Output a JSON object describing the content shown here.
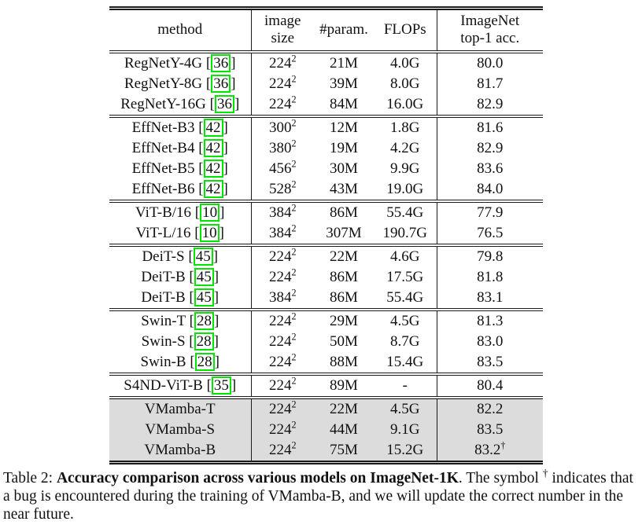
{
  "colors": {
    "citation_box": "#00e400",
    "highlight_row_bg": "#dcdcdc",
    "rule_color": "#1a1a1a",
    "text_color": "#111111"
  },
  "table": {
    "columns": [
      {
        "id": "method",
        "label": "method"
      },
      {
        "id": "image-size",
        "label": "image\nsize"
      },
      {
        "id": "params",
        "label": "#param."
      },
      {
        "id": "flops",
        "label": "FLOPs"
      },
      {
        "id": "top1-acc",
        "label": "ImageNet\ntop-1 acc."
      }
    ],
    "cite_open": "[",
    "cite_close": "]",
    "sections": [
      {
        "group": "RegNetY",
        "highlight": false,
        "rows": [
          {
            "method": "RegNetY-4G",
            "cite": "36",
            "size": "224",
            "size_sup": "2",
            "params": "21M",
            "flops": "4.0G",
            "acc": "80.0",
            "acc_sup": ""
          },
          {
            "method": "RegNetY-8G",
            "cite": "36",
            "size": "224",
            "size_sup": "2",
            "params": "39M",
            "flops": "8.0G",
            "acc": "81.7",
            "acc_sup": ""
          },
          {
            "method": "RegNetY-16G",
            "cite": "36",
            "size": "224",
            "size_sup": "2",
            "params": "84M",
            "flops": "16.0G",
            "acc": "82.9",
            "acc_sup": ""
          }
        ]
      },
      {
        "group": "EffNet",
        "highlight": false,
        "rows": [
          {
            "method": "EffNet-B3",
            "cite": "42",
            "size": "300",
            "size_sup": "2",
            "params": "12M",
            "flops": "1.8G",
            "acc": "81.6",
            "acc_sup": ""
          },
          {
            "method": "EffNet-B4",
            "cite": "42",
            "size": "380",
            "size_sup": "2",
            "params": "19M",
            "flops": "4.2G",
            "acc": "82.9",
            "acc_sup": ""
          },
          {
            "method": "EffNet-B5",
            "cite": "42",
            "size": "456",
            "size_sup": "2",
            "params": "30M",
            "flops": "9.9G",
            "acc": "83.6",
            "acc_sup": ""
          },
          {
            "method": "EffNet-B6",
            "cite": "42",
            "size": "528",
            "size_sup": "2",
            "params": "43M",
            "flops": "19.0G",
            "acc": "84.0",
            "acc_sup": ""
          }
        ]
      },
      {
        "group": "ViT",
        "highlight": false,
        "rows": [
          {
            "method": "ViT-B/16",
            "cite": "10",
            "size": "384",
            "size_sup": "2",
            "params": "86M",
            "flops": "55.4G",
            "acc": "77.9",
            "acc_sup": ""
          },
          {
            "method": "ViT-L/16",
            "cite": "10",
            "size": "384",
            "size_sup": "2",
            "params": "307M",
            "flops": "190.7G",
            "acc": "76.5",
            "acc_sup": ""
          }
        ]
      },
      {
        "group": "DeiT",
        "highlight": false,
        "rows": [
          {
            "method": "DeiT-S",
            "cite": "45",
            "size": "224",
            "size_sup": "2",
            "params": "22M",
            "flops": "4.6G",
            "acc": "79.8",
            "acc_sup": ""
          },
          {
            "method": "DeiT-B",
            "cite": "45",
            "size": "224",
            "size_sup": "2",
            "params": "86M",
            "flops": "17.5G",
            "acc": "81.8",
            "acc_sup": ""
          },
          {
            "method": "DeiT-B",
            "cite": "45",
            "size": "384",
            "size_sup": "2",
            "params": "86M",
            "flops": "55.4G",
            "acc": "83.1",
            "acc_sup": ""
          }
        ]
      },
      {
        "group": "Swin",
        "highlight": false,
        "rows": [
          {
            "method": "Swin-T",
            "cite": "28",
            "size": "224",
            "size_sup": "2",
            "params": "29M",
            "flops": "4.5G",
            "acc": "81.3",
            "acc_sup": ""
          },
          {
            "method": "Swin-S",
            "cite": "28",
            "size": "224",
            "size_sup": "2",
            "params": "50M",
            "flops": "8.7G",
            "acc": "83.0",
            "acc_sup": ""
          },
          {
            "method": "Swin-B",
            "cite": "28",
            "size": "224",
            "size_sup": "2",
            "params": "88M",
            "flops": "15.4G",
            "acc": "83.5",
            "acc_sup": ""
          }
        ]
      },
      {
        "group": "S4ND",
        "highlight": false,
        "rows": [
          {
            "method": "S4ND-ViT-B",
            "cite": "35",
            "size": "224",
            "size_sup": "2",
            "params": "89M",
            "flops": "-",
            "acc": "80.4",
            "acc_sup": ""
          }
        ]
      },
      {
        "group": "VMamba",
        "highlight": true,
        "rows": [
          {
            "method": "VMamba-T",
            "cite": "",
            "size": "224",
            "size_sup": "2",
            "params": "22M",
            "flops": "4.5G",
            "acc": "82.2",
            "acc_sup": ""
          },
          {
            "method": "VMamba-S",
            "cite": "",
            "size": "224",
            "size_sup": "2",
            "params": "44M",
            "flops": "9.1G",
            "acc": "83.5",
            "acc_sup": ""
          },
          {
            "method": "VMamba-B",
            "cite": "",
            "size": "224",
            "size_sup": "2",
            "params": "75M",
            "flops": "15.2G",
            "acc": "83.2",
            "acc_sup": "†"
          }
        ]
      }
    ]
  },
  "caption": {
    "prefix": "Table 2: ",
    "bold": "Accuracy comparison across various models on ImageNet-1K",
    "mid": ". The symbol ",
    "sup": "†",
    "tail": " indicates that a bug is encountered during the training of VMamba-B, and we will update the correct number in the near future."
  }
}
